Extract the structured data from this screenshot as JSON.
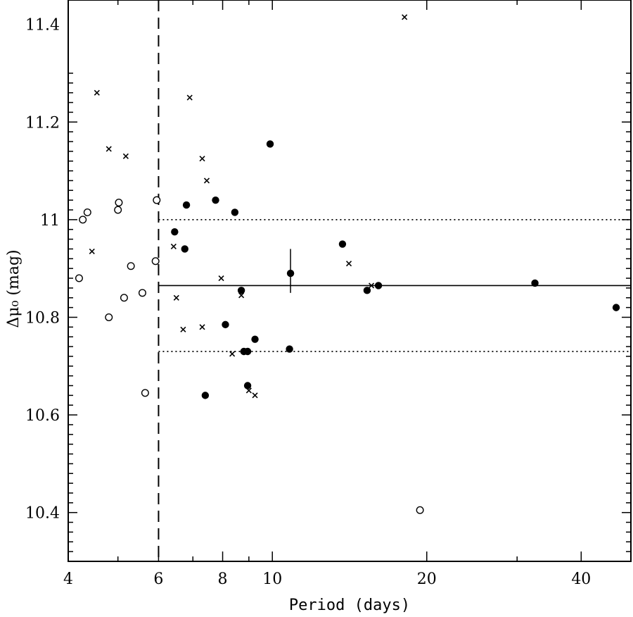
{
  "chart_data": {
    "type": "scatter",
    "title": "",
    "xlabel": "Period (days)",
    "ylabel": "Δμ₀ (mag)",
    "x_scale": "log",
    "xlim": [
      4,
      50
    ],
    "ylim": [
      10.3,
      11.45
    ],
    "x_ticks": [
      4,
      6,
      8,
      10,
      20,
      40
    ],
    "y_ticks": [
      10.4,
      10.6,
      10.8,
      11,
      11.2,
      11.4
    ],
    "y_tick_labels": [
      "10.4",
      "10.6",
      "10.8",
      "11",
      "11.2",
      "11.4"
    ],
    "grid": false,
    "series": [
      {
        "marker": "filled-circle",
        "points": [
          [
            6.45,
            10.975
          ],
          [
            6.75,
            10.94
          ],
          [
            6.8,
            11.03
          ],
          [
            7.4,
            10.64
          ],
          [
            7.75,
            11.04
          ],
          [
            8.1,
            10.785
          ],
          [
            8.45,
            11.015
          ],
          [
            8.7,
            10.855
          ],
          [
            8.8,
            10.73
          ],
          [
            8.95,
            10.73
          ],
          [
            8.95,
            10.66
          ],
          [
            9.25,
            10.755
          ],
          [
            9.9,
            11.155
          ],
          [
            10.8,
            10.735
          ],
          [
            10.85,
            10.89
          ],
          [
            13.7,
            10.95
          ],
          [
            15.3,
            10.855
          ],
          [
            16.1,
            10.865
          ],
          [
            32.5,
            10.87
          ],
          [
            46.8,
            10.82
          ]
        ]
      },
      {
        "marker": "open-circle",
        "points": [
          [
            4.2,
            10.88
          ],
          [
            4.27,
            11.0
          ],
          [
            4.36,
            11.015
          ],
          [
            4.8,
            10.8
          ],
          [
            5.0,
            11.02
          ],
          [
            5.02,
            11.035
          ],
          [
            5.14,
            10.84
          ],
          [
            5.3,
            10.905
          ],
          [
            5.58,
            10.85
          ],
          [
            5.65,
            10.645
          ],
          [
            5.92,
            10.915
          ],
          [
            5.95,
            11.04
          ],
          [
            19.4,
            10.405
          ]
        ]
      },
      {
        "marker": "cross",
        "points": [
          [
            4.45,
            10.935
          ],
          [
            4.55,
            11.26
          ],
          [
            4.8,
            11.145
          ],
          [
            5.18,
            11.13
          ],
          [
            6.42,
            10.945
          ],
          [
            6.5,
            10.84
          ],
          [
            6.7,
            10.775
          ],
          [
            6.9,
            11.25
          ],
          [
            7.3,
            11.125
          ],
          [
            7.3,
            10.78
          ],
          [
            7.45,
            11.08
          ],
          [
            7.95,
            10.88
          ],
          [
            8.35,
            10.725
          ],
          [
            8.7,
            10.845
          ],
          [
            9.0,
            10.65
          ],
          [
            9.25,
            10.64
          ],
          [
            14.1,
            10.91
          ],
          [
            15.6,
            10.865
          ],
          [
            18.1,
            11.415
          ]
        ]
      }
    ],
    "reference_lines": {
      "solid_y": 10.865,
      "dotted_y": [
        11.0,
        10.73
      ],
      "dashed_x": 6.0,
      "lines_start_x": 6.0
    },
    "error_bar": {
      "x": 10.85,
      "y": 10.89,
      "low": 10.85,
      "high": 10.94
    }
  }
}
